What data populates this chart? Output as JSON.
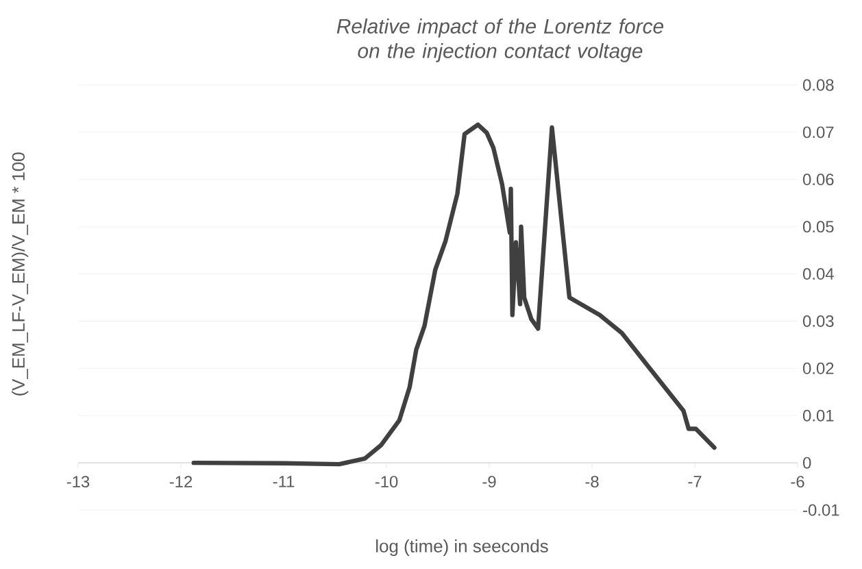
{
  "chart_data": {
    "type": "line",
    "title": "Relative impact of the Lorentz force on the injection contact voltage",
    "xlabel": "log (time) in seeconds",
    "ylabel": "(V_EM_LF-V_EM)/V_EM * 100",
    "x": [
      -11.875,
      -11.0,
      -10.46,
      -10.21,
      -10.05,
      -9.875,
      -9.775,
      -9.71,
      -9.63,
      -9.525,
      -9.425,
      -9.31,
      -9.24,
      -9.11,
      -9.025,
      -8.96,
      -8.875,
      -8.8,
      -8.79,
      -8.775,
      -8.74,
      -8.7,
      -8.69,
      -8.66,
      -8.59,
      -8.525,
      -8.39,
      -8.22,
      -7.925,
      -7.71,
      -7.46,
      -7.11,
      -7.06,
      -6.99,
      -6.81
    ],
    "series": [
      {
        "color": "#404040",
        "values": [
          0,
          -0.0001,
          -0.0003,
          0.0009,
          0.0038,
          0.009,
          0.016,
          0.024,
          0.029,
          0.0409,
          0.047,
          0.057,
          0.0696,
          0.0716,
          0.0699,
          0.0667,
          0.059,
          0.0487,
          0.058,
          0.0313,
          0.0467,
          0.0336,
          0.05,
          0.035,
          0.0304,
          0.0284,
          0.071,
          0.035,
          0.0313,
          0.0275,
          0.0206,
          0.011,
          0.0072,
          0.0072,
          0.0032
        ]
      }
    ],
    "xlim": [
      -13,
      -6
    ],
    "xticks": [
      -13,
      -12,
      -11,
      -10,
      -9,
      -8,
      -7,
      -6
    ],
    "ylim": [
      -0.01,
      0.08
    ],
    "yticks": [
      -0.01,
      0,
      0.01,
      0.02,
      0.03,
      0.04,
      0.05,
      0.06,
      0.07,
      0.08
    ],
    "grid": "y",
    "marker": "none",
    "line_style": "solid"
  }
}
